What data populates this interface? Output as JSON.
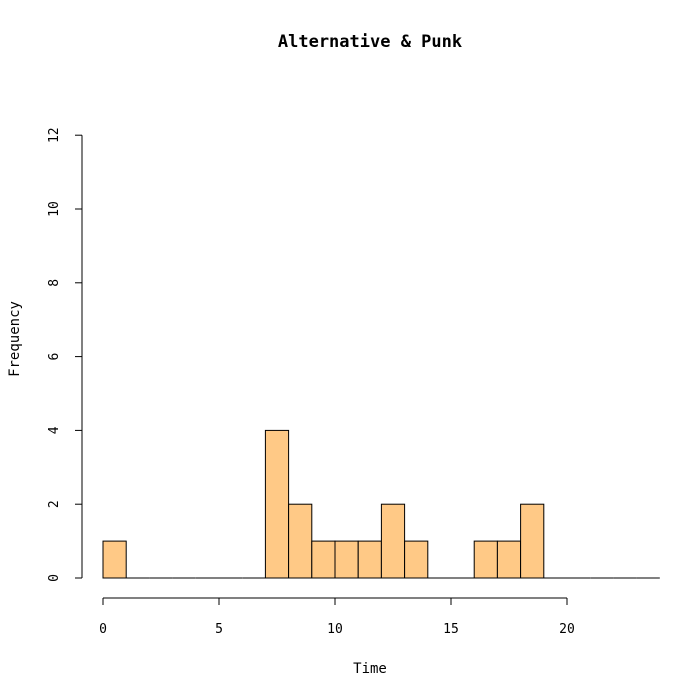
{
  "chart_data": {
    "type": "bar",
    "title": "Alternative & Punk",
    "xlabel": "Time",
    "ylabel": "Frequency",
    "bin_width": 1,
    "bins": [
      {
        "x0": 0,
        "x1": 1,
        "count": 1
      },
      {
        "x0": 1,
        "x1": 2,
        "count": 0
      },
      {
        "x0": 2,
        "x1": 3,
        "count": 0
      },
      {
        "x0": 3,
        "x1": 4,
        "count": 0
      },
      {
        "x0": 4,
        "x1": 5,
        "count": 0
      },
      {
        "x0": 5,
        "x1": 6,
        "count": 0
      },
      {
        "x0": 6,
        "x1": 7,
        "count": 0
      },
      {
        "x0": 7,
        "x1": 8,
        "count": 4
      },
      {
        "x0": 8,
        "x1": 9,
        "count": 2
      },
      {
        "x0": 9,
        "x1": 10,
        "count": 1
      },
      {
        "x0": 10,
        "x1": 11,
        "count": 1
      },
      {
        "x0": 11,
        "x1": 12,
        "count": 1
      },
      {
        "x0": 12,
        "x1": 13,
        "count": 2
      },
      {
        "x0": 13,
        "x1": 14,
        "count": 1
      },
      {
        "x0": 14,
        "x1": 15,
        "count": 0
      },
      {
        "x0": 15,
        "x1": 16,
        "count": 0
      },
      {
        "x0": 16,
        "x1": 17,
        "count": 1
      },
      {
        "x0": 17,
        "x1": 18,
        "count": 1
      },
      {
        "x0": 18,
        "x1": 19,
        "count": 2
      },
      {
        "x0": 19,
        "x1": 20,
        "count": 0
      },
      {
        "x0": 20,
        "x1": 21,
        "count": 0
      },
      {
        "x0": 21,
        "x1": 22,
        "count": 0
      },
      {
        "x0": 22,
        "x1": 23,
        "count": 0
      },
      {
        "x0": 23,
        "x1": 24,
        "count": 0
      }
    ],
    "xlim": [
      0,
      24
    ],
    "ylim": [
      0,
      12
    ],
    "x_ticks": [
      0,
      5,
      10,
      15,
      20
    ],
    "y_ticks": [
      0,
      2,
      4,
      6,
      8,
      10,
      12
    ],
    "bar_color": "#FFC986",
    "grid": false
  }
}
